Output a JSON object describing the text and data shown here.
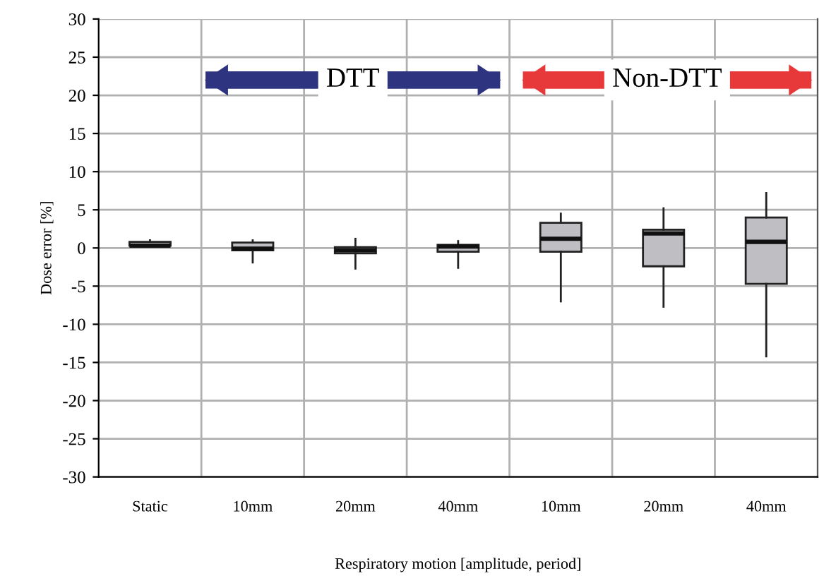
{
  "chart_data": {
    "type": "box",
    "xlabel": "Respiratory motion [amplitude, period]",
    "ylabel": "Dose error [%]",
    "categories": [
      "Static",
      "10mm",
      "20mm",
      "40mm",
      "10mm",
      "20mm",
      "40mm"
    ],
    "color": "#bfbfc3",
    "boxes": [
      {
        "low": 0.2,
        "q1": 0.3,
        "median": 0.3,
        "q3": 0.8,
        "high": 1.0
      },
      {
        "low": -1.9,
        "q1": -0.3,
        "median": -0.1,
        "q3": 0.7,
        "high": 1.0
      },
      {
        "low": -2.7,
        "q1": -0.7,
        "median": -0.3,
        "q3": 0.1,
        "high": 1.2
      },
      {
        "low": -2.6,
        "q1": -0.5,
        "median": 0.2,
        "q3": 0.4,
        "high": 0.9
      },
      {
        "low": -7.0,
        "q1": -0.5,
        "median": 1.2,
        "q3": 3.3,
        "high": 4.5
      },
      {
        "low": -7.7,
        "q1": -2.4,
        "median": 1.9,
        "q3": 2.4,
        "high": 5.2
      },
      {
        "low": -14.2,
        "q1": -4.7,
        "median": 0.8,
        "q3": 4.0,
        "high": 7.2
      }
    ],
    "ylim": [
      -30,
      30
    ],
    "yticks": [
      -30,
      -25,
      -20,
      -15,
      -10,
      -5,
      0,
      5,
      10,
      15,
      20,
      25,
      30
    ],
    "grid": true,
    "annotations": [
      "DTT",
      "Non-DTT"
    ]
  }
}
